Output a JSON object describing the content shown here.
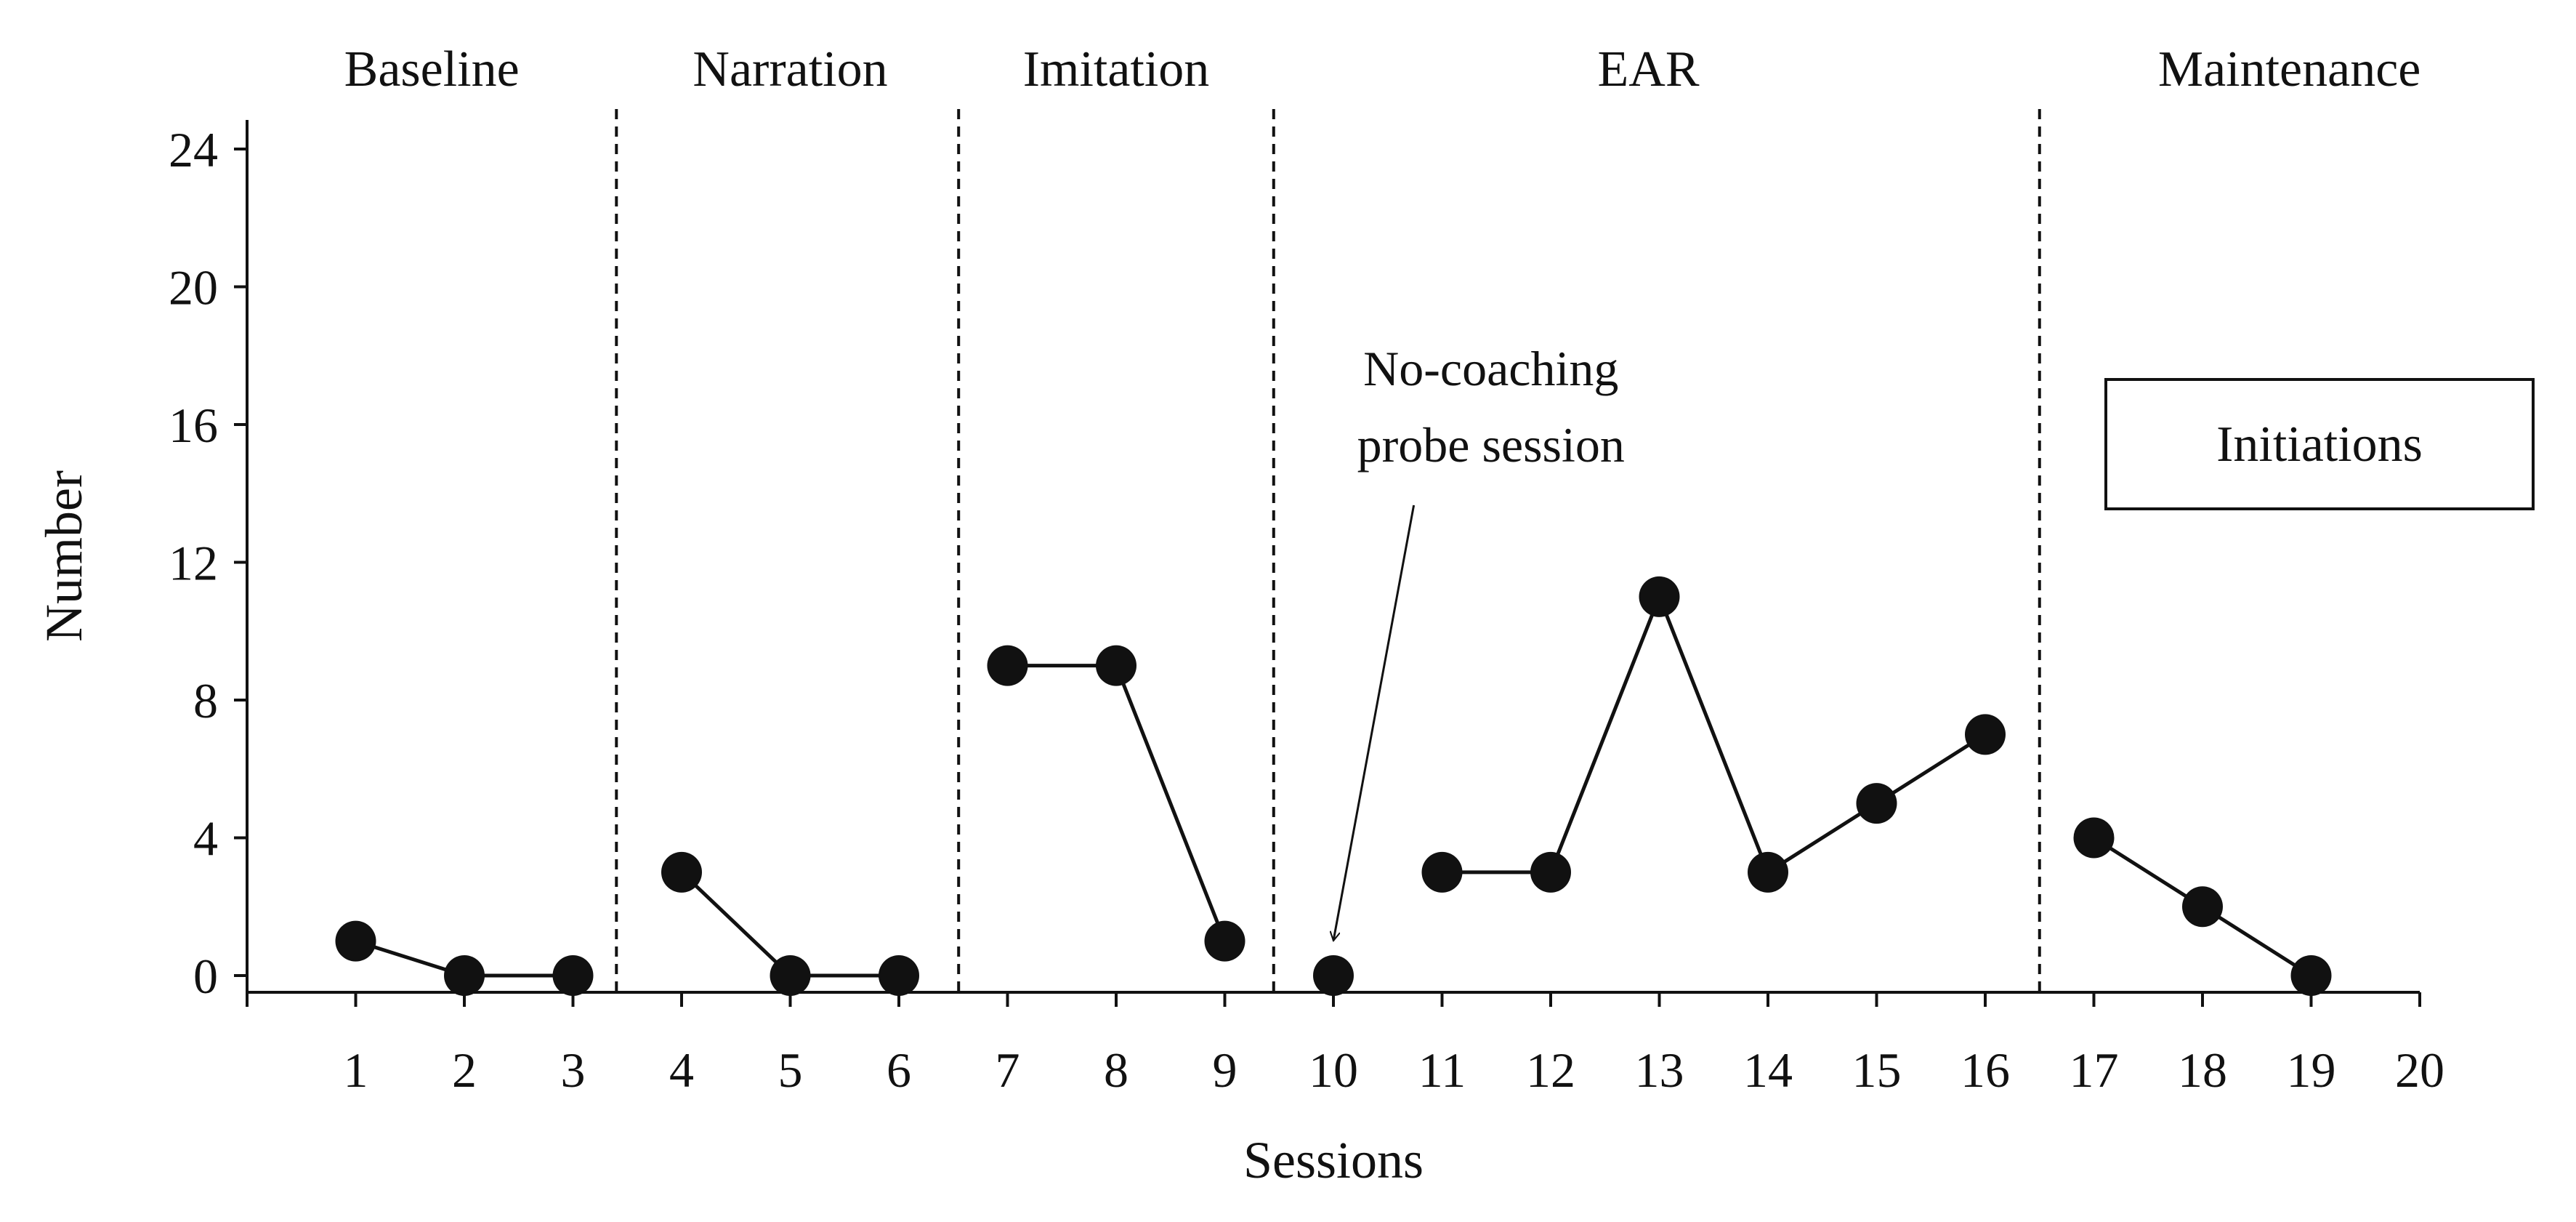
{
  "chart_data": {
    "type": "line",
    "xlabel": "Sessions",
    "ylabel": "Number",
    "xlim": [
      0,
      20
    ],
    "ylim": [
      0,
      24
    ],
    "x_ticks": [
      1,
      2,
      3,
      4,
      5,
      6,
      7,
      8,
      9,
      10,
      11,
      12,
      13,
      14,
      15,
      16,
      17,
      18,
      19,
      20
    ],
    "y_ticks": [
      0,
      4,
      8,
      12,
      16,
      20,
      24
    ],
    "grid": false,
    "legend": {
      "label": "Initiations",
      "placement": "right"
    },
    "phase_boundaries": [
      3.4,
      6.55,
      9.45,
      16.5
    ],
    "phases": [
      {
        "label": "Baseline",
        "center": 1.7
      },
      {
        "label": "Narration",
        "center": 5.0
      },
      {
        "label": "Imitation",
        "center": 8.0
      },
      {
        "label": "EAR",
        "center": 12.9
      },
      {
        "label": "Maintenance",
        "center": 18.8
      }
    ],
    "series": [
      {
        "segments": [
          [
            {
              "x": 1,
              "y": 1
            },
            {
              "x": 2,
              "y": 0
            },
            {
              "x": 3,
              "y": 0
            }
          ],
          [
            {
              "x": 4,
              "y": 3
            },
            {
              "x": 5,
              "y": 0
            },
            {
              "x": 6,
              "y": 0
            }
          ],
          [
            {
              "x": 7,
              "y": 9
            },
            {
              "x": 8,
              "y": 9
            },
            {
              "x": 9,
              "y": 1
            }
          ],
          [
            {
              "x": 10,
              "y": 0
            }
          ],
          [
            {
              "x": 11,
              "y": 3
            },
            {
              "x": 12,
              "y": 3
            },
            {
              "x": 13,
              "y": 11
            },
            {
              "x": 14,
              "y": 3
            },
            {
              "x": 15,
              "y": 5
            },
            {
              "x": 16,
              "y": 7
            }
          ],
          [
            {
              "x": 17,
              "y": 4
            },
            {
              "x": 18,
              "y": 2
            },
            {
              "x": 19,
              "y": 0
            }
          ]
        ]
      }
    ],
    "annotation": {
      "lines": [
        "No-coaching",
        "probe session"
      ],
      "target": {
        "x": 10,
        "y": 0
      }
    }
  },
  "colors": {
    "ink": "#111111",
    "background": "#ffffff"
  }
}
